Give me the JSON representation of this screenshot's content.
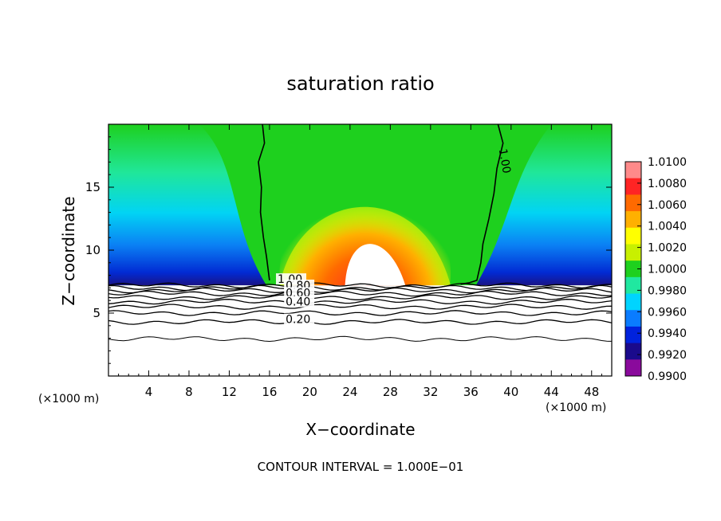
{
  "chart_data": {
    "type": "heatmap",
    "title": "saturation ratio",
    "xlabel": "X−coordinate",
    "ylabel": "Z−coordinate",
    "x_unit_left": "(×1000 m)",
    "x_unit_right": "(×1000 m)",
    "xlim": [
      0,
      50
    ],
    "ylim": [
      0,
      20
    ],
    "xticks": [
      4,
      8,
      12,
      16,
      20,
      24,
      28,
      32,
      36,
      40,
      44,
      48
    ],
    "yticks": [
      5,
      10,
      15
    ],
    "footer": "CONTOUR INTERVAL = 1.000E−01",
    "colorbar": {
      "levels": [
        "1.0100",
        "1.0080",
        "1.0060",
        "1.0040",
        "1.0020",
        "1.0000",
        "0.9980",
        "0.9960",
        "0.9940",
        "0.9920",
        "0.9900"
      ],
      "colors": [
        "#ff8a8a",
        "#ff2424",
        "#ff6a00",
        "#ffb000",
        "#ffff00",
        "#c8f000",
        "#1ed01e",
        "#20e8a0",
        "#00d4ff",
        "#0a7cff",
        "#0022dd",
        "#1a0a8c",
        "#8a0a9c"
      ]
    },
    "contour_labels": [
      {
        "text": "1.00",
        "x": 16.8,
        "y": 7.4
      },
      {
        "text": "0.80",
        "x": 17.6,
        "y": 6.9
      },
      {
        "text": "0.60",
        "x": 17.6,
        "y": 6.3
      },
      {
        "text": "0.40",
        "x": 17.6,
        "y": 5.6
      },
      {
        "text": "0.20",
        "x": 17.6,
        "y": 4.2
      },
      {
        "text": "1.00",
        "x": 38.8,
        "y": 18.0
      }
    ],
    "contour_lines_z": [
      7.2,
      7.0,
      6.8,
      6.55,
      6.25,
      5.9,
      5.5,
      5.0,
      4.3,
      2.95
    ]
  }
}
